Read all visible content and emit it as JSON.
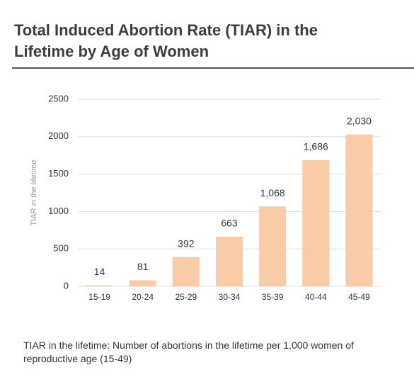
{
  "chart_data": {
    "type": "bar",
    "title": "Total Induced Abortion Rate (TIAR) in the Lifetime by Age of Women",
    "y_label": "TIAR in the lifetime",
    "categories": [
      "15-19",
      "20-24",
      "25-29",
      "30-34",
      "35-39",
      "40-44",
      "45-49"
    ],
    "values": [
      14,
      81,
      392,
      663,
      1068,
      1686,
      2030
    ],
    "value_labels": [
      "14",
      "81",
      "392",
      "663",
      "1,068",
      "1,686",
      "2,030"
    ],
    "color": "#f9cba6",
    "ylim": [
      0,
      2500
    ],
    "yticks": [
      0,
      500,
      1000,
      1500,
      2000,
      2500
    ],
    "grid": true,
    "footnote": "TIAR in the lifetime: Number of abortions in the lifetime per 1,000 women of reproductive age (15-49)"
  }
}
